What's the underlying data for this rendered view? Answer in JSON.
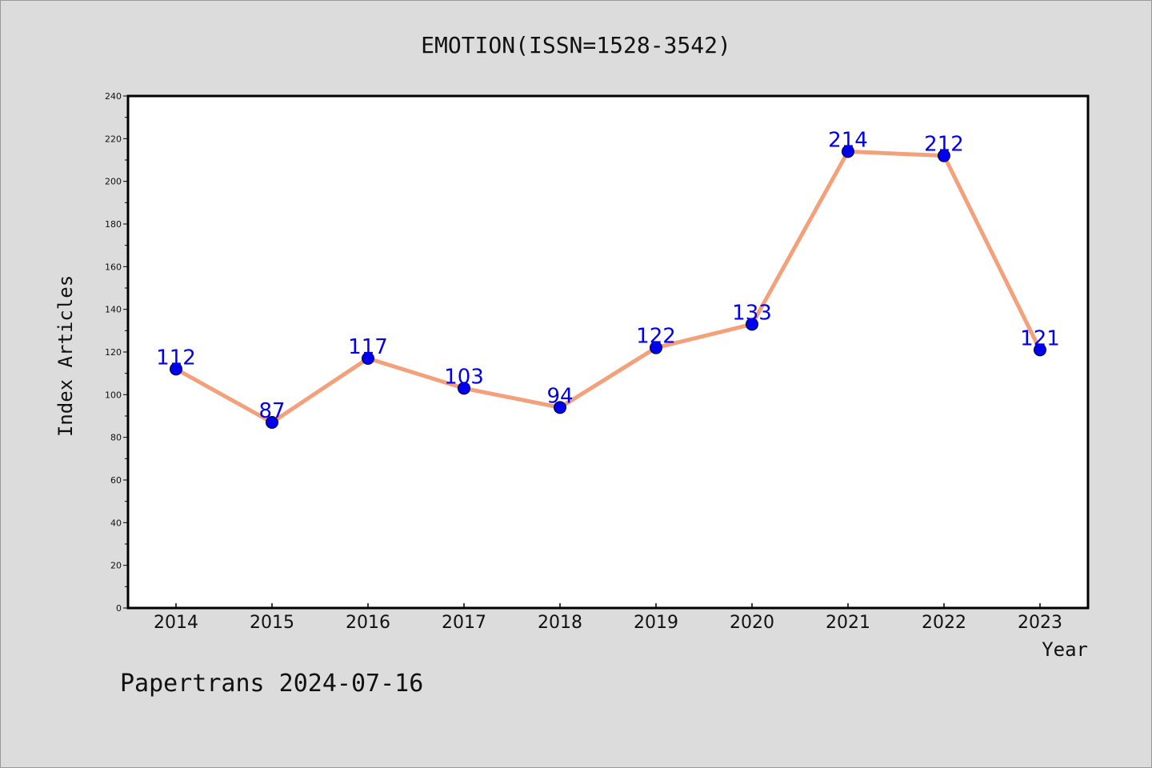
{
  "chart_data": {
    "type": "line",
    "title": "EMOTION(ISSN=1528-3542)",
    "xlabel": "Year",
    "ylabel": "Index Articles",
    "categories": [
      "2014",
      "2015",
      "2016",
      "2017",
      "2018",
      "2019",
      "2020",
      "2021",
      "2022",
      "2023"
    ],
    "values": [
      112,
      87,
      117,
      103,
      94,
      122,
      133,
      214,
      212,
      121
    ],
    "ylim": [
      0,
      240
    ],
    "yticks": [
      0,
      20,
      40,
      60,
      80,
      100,
      120,
      140,
      160,
      180,
      200,
      220,
      240
    ],
    "grid": false,
    "legend": "none",
    "line_color": "#f4a07a",
    "marker_color": "#0000ee",
    "label_color": "#0000ee"
  },
  "footer": "Papertrans 2024-07-16"
}
